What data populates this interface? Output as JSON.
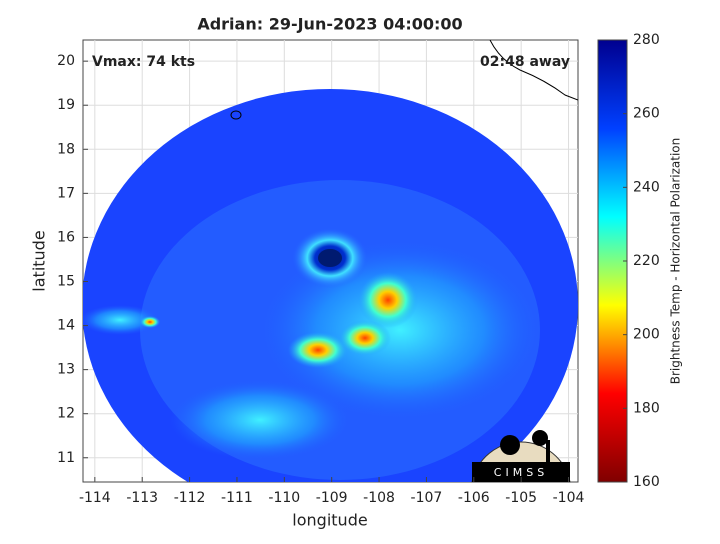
{
  "chart_data": {
    "type": "map",
    "title": "Adrian: 29-Jun-2023 04:00:00",
    "annotations": [
      "Vmax: 74 kts",
      "02:48 away"
    ],
    "xlabel": "longitude",
    "ylabel": "latitude",
    "xlim": [
      -114.25,
      -103.8
    ],
    "ylim": [
      10.45,
      20.48
    ],
    "xticks": [
      -114,
      -113,
      -112,
      -111,
      -110,
      -109,
      -108,
      -107,
      -106,
      -105,
      -104
    ],
    "yticks": [
      11,
      12,
      13,
      14,
      15,
      16,
      17,
      18,
      19,
      20
    ],
    "grid": true,
    "colorbar": {
      "label": "Brightness Temp - Horizontal Polarization",
      "lim": [
        160,
        280
      ],
      "ticks": [
        160,
        180,
        200,
        220,
        240,
        260,
        280
      ],
      "colors": [
        "#800000",
        "#ff0000",
        "#ffff00",
        "#00ffff",
        "#0040ff",
        "#00008f"
      ]
    },
    "logo": "CIMSS"
  }
}
